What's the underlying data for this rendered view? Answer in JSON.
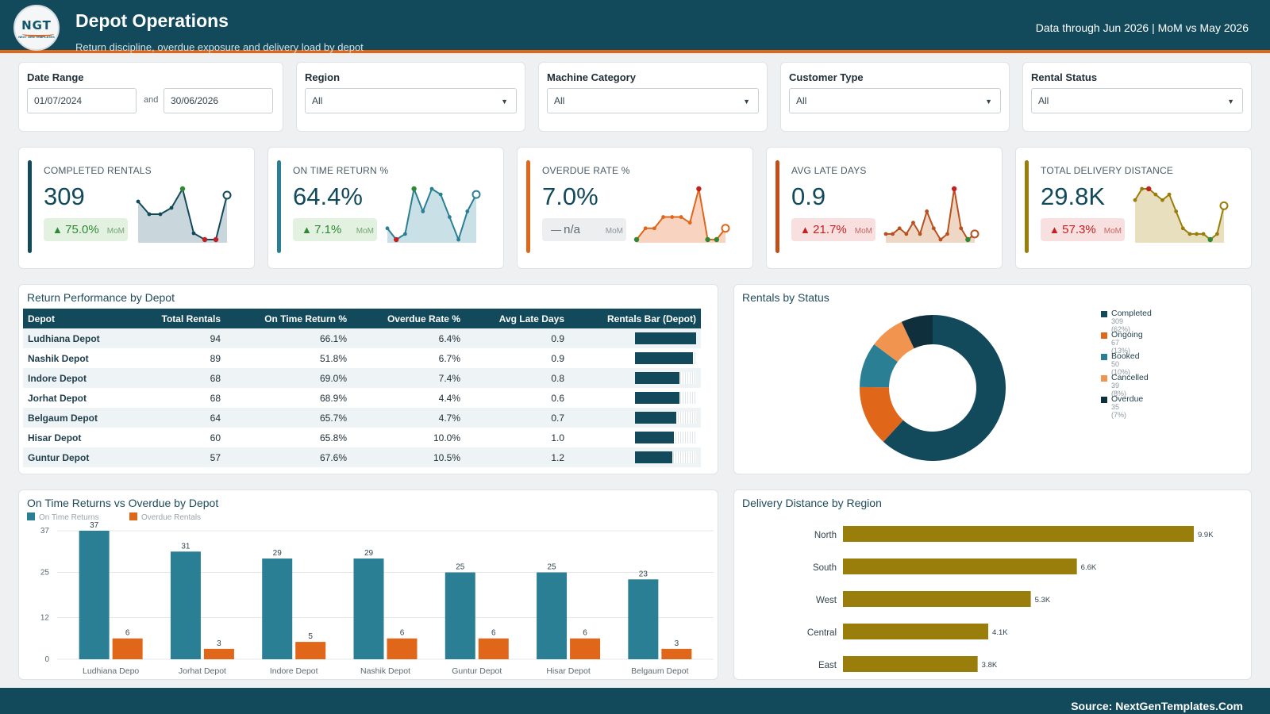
{
  "header": {
    "logo_text": "NGT",
    "logo_sub": "NEXT GEN TEMPLATES",
    "title": "Depot Operations",
    "subtitle": "Return discipline, overdue exposure and delivery load by depot",
    "right_text": "Data through Jun 2026 | MoM vs May 2026"
  },
  "filters": {
    "date_range": {
      "label": "Date Range",
      "from": "01/07/2024",
      "connector": "and",
      "to": "30/06/2026"
    },
    "region": {
      "label": "Region",
      "value": "All"
    },
    "machine_category": {
      "label": "Machine Category",
      "value": "All"
    },
    "customer_type": {
      "label": "Customer Type",
      "value": "All"
    },
    "rental_status": {
      "label": "Rental Status",
      "value": "All"
    }
  },
  "kpis": [
    {
      "title": "COMPLETED RENTALS",
      "value": "309",
      "change": "75.0%",
      "direction": "up",
      "mom": "MoM",
      "accent": "#124a5c",
      "pill": "g",
      "spark_color": "#124a5c",
      "spark_fill": "#c9d6dc",
      "spark": [
        6,
        4,
        4,
        5,
        8,
        1,
        0,
        0,
        7
      ],
      "spark_marks": {
        "green": [
          4
        ],
        "red": [
          6,
          7
        ],
        "open": [
          8
        ]
      }
    },
    {
      "title": "ON TIME RETURN %",
      "value": "64.4%",
      "change": "7.1%",
      "direction": "up",
      "mom": "MoM",
      "accent": "#2b7f95",
      "pill": "g",
      "spark_color": "#2b7f95",
      "spark_fill": "#c9e0e6",
      "spark": [
        2,
        0,
        1,
        9,
        5,
        9,
        8,
        4,
        0,
        5,
        8
      ],
      "spark_marks": {
        "green": [
          3
        ],
        "red": [
          1
        ],
        "open": [
          10
        ]
      }
    },
    {
      "title": "OVERDUE RATE %",
      "value": "7.0%",
      "change": "n/a",
      "direction": "none",
      "mom": "MoM",
      "accent": "#e0661a",
      "pill": "n",
      "spark_color": "#e0661a",
      "spark_fill": "#f8d4c0",
      "spark": [
        0,
        2,
        2,
        4,
        4,
        4,
        3,
        9,
        0,
        0,
        2
      ],
      "spark_marks": {
        "green": [
          0,
          8,
          9
        ],
        "red": [
          7
        ],
        "open": [
          10
        ]
      }
    },
    {
      "title": "AVG LATE DAYS",
      "value": "0.9",
      "change": "21.7%",
      "direction": "up-bad",
      "mom": "MoM",
      "accent": "#c0501a",
      "pill": "r",
      "spark_color": "#b8501f",
      "spark_fill": "#efd7c6",
      "spark": [
        1,
        1,
        2,
        1,
        3,
        1,
        5,
        2,
        0,
        1,
        9,
        2,
        0,
        1
      ],
      "spark_marks": {
        "green": [
          12
        ],
        "red": [
          10
        ],
        "open": [
          13
        ]
      }
    },
    {
      "title": "TOTAL DELIVERY DISTANCE",
      "value": "29.8K",
      "change": "57.3%",
      "direction": "up-bad",
      "mom": "MoM",
      "accent": "#9a7e0b",
      "pill": "r",
      "spark_color": "#9a7e0b",
      "spark_fill": "#e8dfbf",
      "spark": [
        7,
        9,
        9,
        8,
        7,
        8,
        5,
        2,
        1,
        1,
        1,
        0,
        1,
        6
      ],
      "spark_marks": {
        "green": [
          11
        ],
        "red": [
          2
        ],
        "open": [
          13
        ]
      }
    }
  ],
  "depot_table": {
    "title": "Return Performance by Depot",
    "columns": [
      "Depot",
      "Total Rentals",
      "On Time Return %",
      "Overdue Rate %",
      "Avg Late Days",
      "Rentals Bar (Depot)"
    ],
    "rows": [
      {
        "depot": "Ludhiana Depot",
        "total": "94",
        "on_time": "66.1%",
        "overdue": "6.4%",
        "late": "0.9",
        "bar": 1.0
      },
      {
        "depot": "Nashik Depot",
        "total": "89",
        "on_time": "51.8%",
        "overdue": "6.7%",
        "late": "0.9",
        "bar": 0.9468
      },
      {
        "depot": "Indore Depot",
        "total": "68",
        "on_time": "69.0%",
        "overdue": "7.4%",
        "late": "0.8",
        "bar": 0.7234
      },
      {
        "depot": "Jorhat Depot",
        "total": "68",
        "on_time": "68.9%",
        "overdue": "4.4%",
        "late": "0.6",
        "bar": 0.7234
      },
      {
        "depot": "Belgaum Depot",
        "total": "64",
        "on_time": "65.7%",
        "overdue": "4.7%",
        "late": "0.7",
        "bar": 0.6809
      },
      {
        "depot": "Hisar Depot",
        "total": "60",
        "on_time": "65.8%",
        "overdue": "10.0%",
        "late": "1.0",
        "bar": 0.6383
      },
      {
        "depot": "Guntur Depot",
        "total": "57",
        "on_time": "67.6%",
        "overdue": "10.5%",
        "late": "1.2",
        "bar": 0.6064
      }
    ]
  },
  "charts": {
    "status": {
      "title": "Rentals by Status"
    },
    "grouped": {
      "title": "On Time Returns vs Overdue by Depot"
    },
    "distance": {
      "title": "Delivery Distance by Region"
    }
  },
  "chart_data": [
    {
      "type": "pie",
      "title": "Rentals by Status",
      "slices": [
        {
          "label": "Completed",
          "value": 309,
          "sub": "309 (62%)",
          "color": "#124a5c"
        },
        {
          "label": "Ongoing",
          "value": 67,
          "sub": "67 (13%)",
          "color": "#e0661a"
        },
        {
          "label": "Booked",
          "value": 50,
          "sub": "50 (10%)",
          "color": "#2b7f95"
        },
        {
          "label": "Cancelled",
          "value": 39,
          "sub": "39 (8%)",
          "color": "#f0944f"
        },
        {
          "label": "Overdue",
          "value": 35,
          "sub": "35 (7%)",
          "color": "#0f2f3d"
        }
      ]
    },
    {
      "type": "bar",
      "title": "On Time Returns vs Overdue by Depot",
      "categories": [
        "Ludhiana Depo",
        "Jorhat Depot",
        "Indore Depot",
        "Nashik Depot",
        "Guntur Depot",
        "Hisar Depot",
        "Belgaum Depot"
      ],
      "series": [
        {
          "name": "On Time Returns",
          "color": "#2b7f95",
          "values": [
            37,
            31,
            29,
            29,
            25,
            25,
            23
          ]
        },
        {
          "name": "Overdue Rentals",
          "color": "#e0661a",
          "values": [
            6,
            3,
            5,
            6,
            6,
            6,
            3
          ]
        }
      ],
      "yticks": [
        "0",
        "12",
        "25",
        "37"
      ],
      "ylim": [
        0,
        37
      ]
    },
    {
      "type": "bar",
      "orientation": "horizontal",
      "title": "Delivery Distance by Region",
      "categories": [
        "North",
        "South",
        "West",
        "Central",
        "East"
      ],
      "values": [
        9.9,
        6.6,
        5.3,
        4.1,
        3.8
      ],
      "labels": [
        "9.9K",
        "6.6K",
        "5.3K",
        "4.1K",
        "3.8K"
      ],
      "color": "#9a7e0b"
    }
  ],
  "footer": {
    "text": "Source: NextGenTemplates.Com"
  }
}
